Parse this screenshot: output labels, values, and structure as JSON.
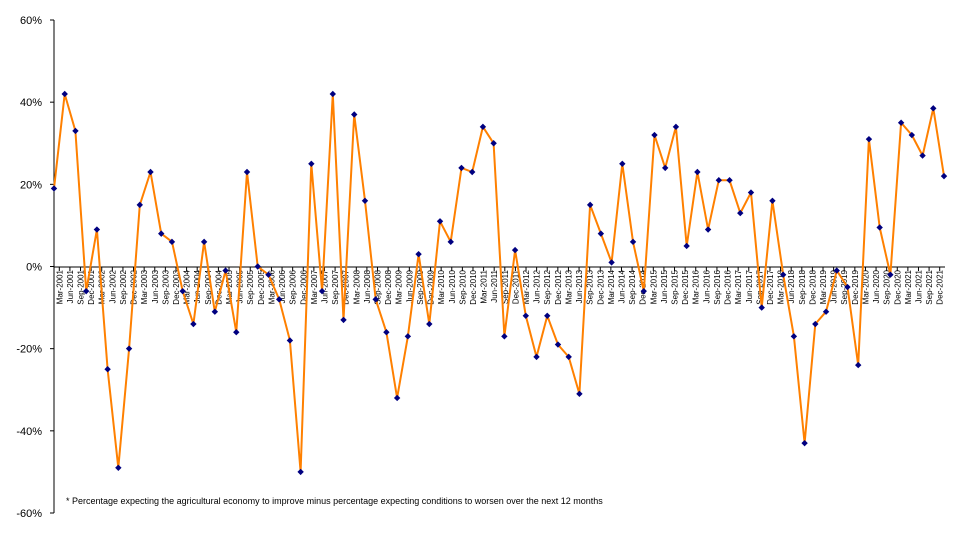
{
  "chart_data": {
    "type": "line",
    "title": "",
    "xlabel": "",
    "ylabel": "",
    "ylim": [
      -60,
      60
    ],
    "y_ticks": [
      "60%",
      "40%",
      "20%",
      "0%",
      "-20%",
      "-40%",
      "-60%"
    ],
    "y_tick_values": [
      60,
      40,
      20,
      0,
      -20,
      -40,
      -60
    ],
    "grid": false,
    "legend": "none",
    "line_color": "#FF8000",
    "marker_color": "#000080",
    "footnote": "* Percentage expecting the agricultural economy to improve minus percentage expecting conditions to worsen over the next 12 months",
    "categories": [
      "Mar-2001",
      "Jun-2001",
      "Sep-2001",
      "Dec-2001",
      "Mar-2002",
      "Jun-2002",
      "Sep-2002",
      "Dec-2002",
      "Mar-2003",
      "Jun-2003",
      "Sep-2003",
      "Dec-2003",
      "Mar-2004",
      "Jun-2004",
      "Sep-2004",
      "Dec-2004",
      "Mar-2005",
      "Jun-2005",
      "Sep-2005",
      "Dec-2005",
      "Mar-2006",
      "Jun-2006",
      "Sep-2006",
      "Dec-2006",
      "Mar-2007",
      "Jun-2007",
      "Sep-2007",
      "Dec-2007",
      "Mar-2008",
      "Jun-2008",
      "Sep-2008",
      "Dec-2008",
      "Mar-2009",
      "Jun-2009",
      "Sep-2009",
      "Dec-2009",
      "Mar-2010",
      "Jun-2010",
      "Sep-2010",
      "Dec-2010",
      "Mar-2011",
      "Jun-2011",
      "Sep-2011",
      "Dec-2011",
      "Mar-2012",
      "Jun-2012",
      "Sep-2012",
      "Dec-2012",
      "Mar-2013",
      "Jun-2013",
      "Sep-2013",
      "Dec-2013",
      "Mar-2014",
      "Jun-2014",
      "Sep-2014",
      "Dec-2014",
      "Mar-2015",
      "Jun-2015",
      "Sep-2015",
      "Dec-2015",
      "Mar-2016",
      "Jun-2016",
      "Sep-2016",
      "Dec-2016",
      "Mar-2017",
      "Jun-2017",
      "Sep-2017",
      "Dec-2017",
      "Mar-2018",
      "Jun-2018",
      "Sep-2018",
      "Dec-2018",
      "Mar-2019",
      "Jun-2019",
      "Sep-2019",
      "Dec-2019",
      "Mar-2020",
      "Jun-2020",
      "Sep-2020",
      "Dec-2020",
      "Mar-2021",
      "Jun-2021",
      "Sep-2021",
      "Dec-2021"
    ],
    "x": [
      2001.0,
      2001.42,
      2001.83,
      2002.04,
      2002.42,
      2002.67,
      2002.92,
      2003.21,
      2003.54,
      2003.75,
      2004.0,
      2004.25,
      2004.5,
      2004.75,
      2005.0,
      2005.25,
      2005.5,
      2005.75,
      2006.0,
      2006.25,
      2006.5,
      2006.75,
      2007.0,
      2007.25,
      2007.5,
      2007.71,
      2008.0,
      2008.25,
      2008.5,
      2008.75,
      2009.0,
      2009.25,
      2009.5,
      2009.71,
      2010.0,
      2010.21,
      2010.5,
      2010.71,
      2011.0,
      2011.25,
      2011.5,
      2011.75,
      2012.0,
      2012.25,
      2012.5,
      2012.75,
      2013.0,
      2013.25,
      2013.5,
      2013.75,
      2014.0,
      2014.25,
      2014.5,
      2014.75,
      2015.0,
      2015.25,
      2015.5,
      2015.75,
      2016.0,
      2016.25,
      2016.5,
      2016.75,
      2017.0,
      2017.25,
      2017.5,
      2017.75,
      2018.0,
      2018.25,
      2018.5,
      2018.75,
      2019.0,
      2019.25,
      2019.5,
      2019.75,
      2020.0,
      2020.25,
      2020.5,
      2020.75,
      2021.0,
      2021.25,
      2021.5,
      2021.75,
      2022.0,
      2022.25
    ],
    "x_full": [
      2001.0,
      2001.21,
      2001.42,
      2001.71,
      2002.13,
      2002.42,
      2002.67,
      2002.92,
      2003.21,
      2003.5,
      2003.71,
      2004.0,
      2004.25,
      2004.5,
      2004.75,
      2005.0,
      2005.25,
      2005.5,
      2005.75,
      2006.0,
      2006.25,
      2006.5,
      2006.75,
      2007.0,
      2007.25,
      2007.5,
      2007.75,
      2008.0,
      2008.25,
      2008.5,
      2008.75,
      2009.0,
      2009.25,
      2009.5,
      2009.75,
      2010.0,
      2010.25,
      2010.5,
      2010.75,
      2011.0,
      2011.25,
      2011.5,
      2011.75,
      2012.0,
      2012.25,
      2012.5,
      2012.75,
      2013.0,
      2013.25,
      2013.5,
      2013.75,
      2014.0,
      2014.25,
      2014.5,
      2014.75,
      2015.0,
      2015.25,
      2015.5,
      2015.75,
      2016.0,
      2016.25,
      2016.5,
      2016.75,
      2017.0,
      2017.25,
      2017.5,
      2017.75,
      2018.0,
      2018.25,
      2018.5,
      2018.75,
      2019.0,
      2019.25,
      2019.5,
      2019.75,
      2020.0,
      2020.25,
      2020.5,
      2020.75,
      2021.0,
      2021.25,
      2021.5,
      2021.75,
      2022.0
    ],
    "series": [
      {
        "values": [
          19,
          42,
          33,
          -6,
          9,
          -25,
          -49,
          -20,
          15,
          23,
          8,
          6,
          -6,
          -14,
          6,
          -11,
          -1,
          -16,
          23,
          0,
          -2,
          -8,
          -18,
          -50,
          25,
          -6,
          42,
          -13,
          37,
          16,
          -8,
          -16,
          -32,
          -17,
          3,
          -14,
          11,
          6,
          24,
          23,
          34,
          30,
          -17,
          4,
          -12,
          -22,
          -12,
          -19,
          -22,
          -31,
          15,
          8,
          1,
          25,
          6,
          -6,
          32,
          24,
          34,
          5,
          23,
          9,
          21,
          21,
          13,
          18,
          -10,
          16,
          -2,
          -17,
          -43,
          -14,
          -11,
          -1,
          -5,
          -24,
          31,
          9.5,
          -2,
          35,
          32,
          27,
          38.5,
          22
        ]
      }
    ]
  }
}
